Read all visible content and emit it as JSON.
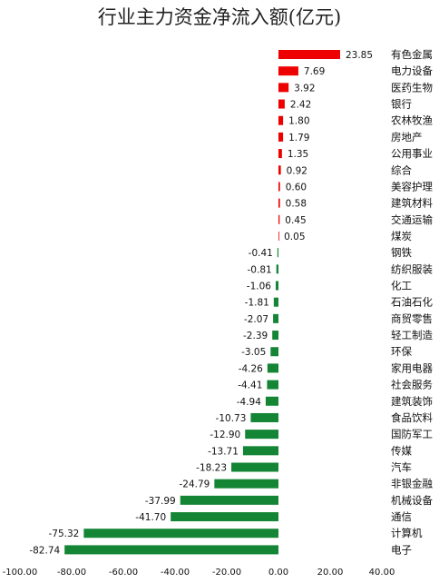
{
  "chart_data": {
    "type": "bar",
    "orientation": "horizontal",
    "title": "行业主力资金净流入额(亿元)",
    "xlabel": "",
    "ylabel": "",
    "xlim": [
      -100,
      40
    ],
    "xticks": [
      -100,
      -80,
      -60,
      -40,
      -20,
      0,
      20,
      40
    ],
    "xtick_labels": [
      "-100.00",
      "-80.00",
      "-60.00",
      "-40.00",
      "-20.00",
      "0.00",
      "20.00",
      "40.00"
    ],
    "grid": false,
    "legend": "none",
    "colors": {
      "positive": "#ee0000",
      "negative": "#138535"
    },
    "categories": [
      "有色金属",
      "电力设备",
      "医药生物",
      "银行",
      "农林牧渔",
      "房地产",
      "公用事业",
      "综合",
      "美容护理",
      "建筑材料",
      "交通运输",
      "煤炭",
      "钢铁",
      "纺织服装",
      "化工",
      "石油石化",
      "商贸零售",
      "轻工制造",
      "环保",
      "家用电器",
      "社会服务",
      "建筑装饰",
      "食品饮料",
      "国防军工",
      "传媒",
      "汽车",
      "非银金融",
      "机械设备",
      "通信",
      "计算机",
      "电子"
    ],
    "values": [
      23.85,
      7.69,
      3.92,
      2.42,
      1.8,
      1.79,
      1.35,
      0.92,
      0.6,
      0.58,
      0.45,
      0.05,
      -0.41,
      -0.81,
      -1.06,
      -1.81,
      -2.07,
      -2.39,
      -3.05,
      -4.26,
      -4.41,
      -4.94,
      -10.73,
      -12.9,
      -13.71,
      -18.23,
      -24.79,
      -37.99,
      -41.7,
      -75.32,
      -82.74
    ],
    "value_labels": [
      "23.85",
      "7.69",
      "3.92",
      "2.42",
      "1.80",
      "1.79",
      "1.35",
      "0.92",
      "0.60",
      "0.58",
      "0.45",
      "0.05",
      "-0.41",
      "-0.81",
      "-1.06",
      "-1.81",
      "-2.07",
      "-2.39",
      "-3.05",
      "-4.26",
      "-4.41",
      "-4.94",
      "-10.73",
      "-12.90",
      "-13.71",
      "-18.23",
      "-24.79",
      "-37.99",
      "-41.70",
      "-75.32",
      "-82.74"
    ]
  }
}
